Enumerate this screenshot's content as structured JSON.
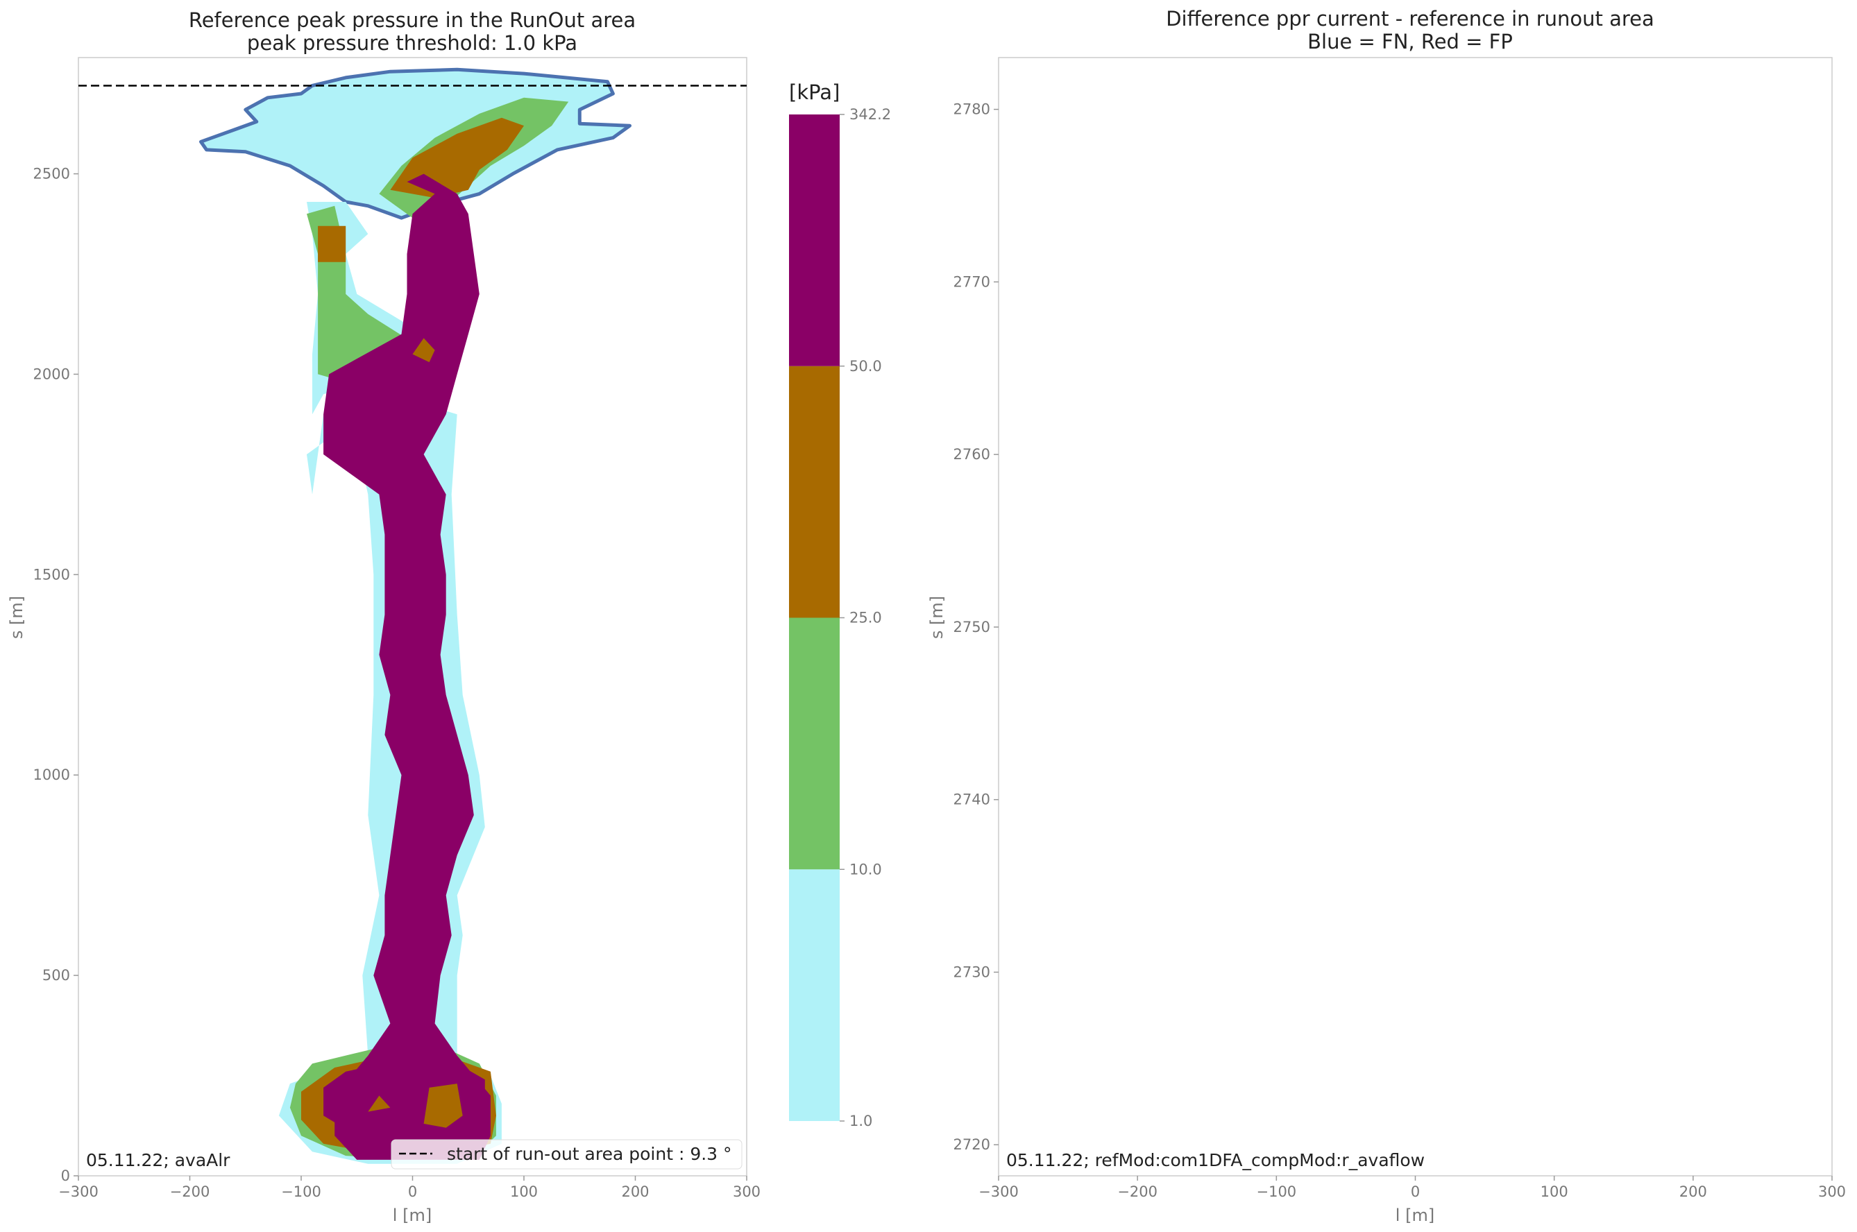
{
  "colors": {
    "outline_blue": "#4c72b0",
    "fill_cyan": "#b0f2f8",
    "fill_green": "#74c365",
    "fill_brown": "#a86a00",
    "fill_purple": "#8a0066",
    "threshold_line": "#000000",
    "spine": "#cccccc"
  },
  "chart_data": [
    {
      "type": "heatmap",
      "title": "Reference peak pressure in the RunOut area",
      "subtitle": "peak pressure threshold: 1.0 kPa",
      "xlabel": "l [m]",
      "ylabel": "s [m]",
      "xlim": [
        -300,
        300
      ],
      "ylim": [
        0,
        2790
      ],
      "xticks": [
        -300,
        -200,
        -100,
        0,
        100,
        200,
        300
      ],
      "yticks": [
        0,
        500,
        1000,
        1500,
        2000,
        2500
      ],
      "grid": false,
      "runout_line_s": 2720,
      "legend": {
        "placement": "lower-right",
        "label": "start of run-out area point : 9.3 °"
      },
      "annotation": "05.11.22; avaAlr",
      "colorbar": {
        "unit": "[kPa]",
        "boundaries": [
          1.0,
          10.0,
          25.0,
          50.0,
          342.2
        ],
        "tick_labels": [
          "1.0",
          "10.0",
          "25.0",
          "50.0",
          "342.2"
        ]
      },
      "description_series": [
        {
          "pressure_range": [
            1.0,
            10.0
          ],
          "color_key": "fill_cyan"
        },
        {
          "pressure_range": [
            10.0,
            25.0
          ],
          "color_key": "fill_green"
        },
        {
          "pressure_range": [
            25.0,
            50.0
          ],
          "color_key": "fill_brown"
        },
        {
          "pressure_range": [
            50.0,
            342.2
          ],
          "color_key": "fill_purple"
        }
      ],
      "profile": {
        "s": [
          40,
          100,
          200,
          300,
          380,
          500,
          600,
          700,
          800,
          900,
          1000,
          1100,
          1200,
          1300,
          1400,
          1500,
          1600,
          1700,
          1800,
          1900,
          2000,
          2100,
          2200,
          2300,
          2400,
          2450
        ],
        "core_left": [
          -50,
          -70,
          -70,
          -40,
          -20,
          -35,
          -25,
          -25,
          -20,
          -15,
          -10,
          -25,
          -20,
          -30,
          -25,
          -25,
          -25,
          -30,
          -80,
          -80,
          -75,
          -10,
          -5,
          -5,
          0,
          20
        ],
        "core_right": [
          60,
          70,
          70,
          40,
          20,
          25,
          35,
          30,
          40,
          55,
          50,
          40,
          30,
          25,
          30,
          30,
          25,
          30,
          10,
          30,
          40,
          50,
          60,
          55,
          50,
          40
        ]
      }
    },
    {
      "type": "heatmap",
      "title": "Difference ppr current - reference in runout area",
      "subtitle": "Blue = FN, Red = FP",
      "xlabel": "l [m]",
      "ylabel": "s [m]",
      "xlim": [
        -300,
        300
      ],
      "ylim": [
        2718.2,
        2783
      ],
      "xticks": [
        -300,
        -200,
        -100,
        0,
        100,
        200,
        300
      ],
      "yticks": [
        2720,
        2730,
        2740,
        2750,
        2760,
        2770,
        2780
      ],
      "grid": false,
      "annotation": "05.11.22; refMod:com1DFA_compMod:r_avaflow"
    }
  ]
}
